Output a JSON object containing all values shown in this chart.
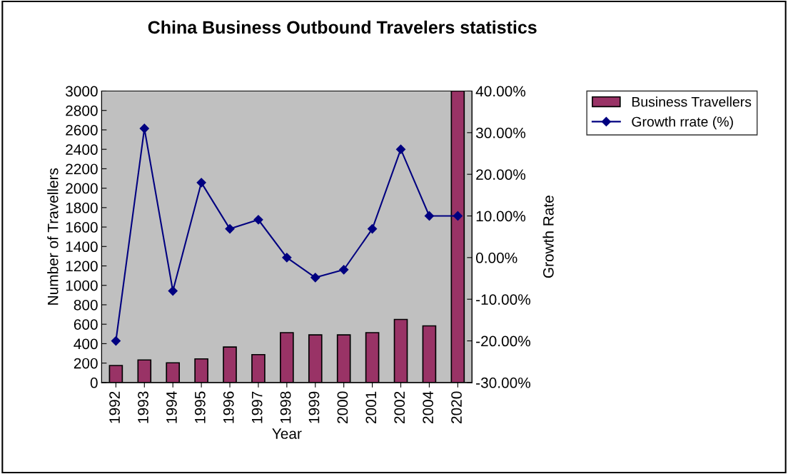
{
  "chart_data": {
    "type": "bar",
    "title": "China Business Outbound Travelers statistics",
    "xlabel": "Year",
    "ylabel": "Number of Travellers",
    "y2label": "Growth Rate",
    "categories": [
      "1992",
      "1993",
      "1994",
      "1995",
      "1996",
      "1997",
      "1998",
      "1999",
      "2000",
      "2001",
      "2002",
      "2004",
      "2020"
    ],
    "series": [
      {
        "name": "Business Travellers",
        "color": "#993366",
        "values": [
          175,
          232,
          203,
          243,
          365,
          287,
          513,
          490,
          490,
          513,
          649,
          583,
          3000
        ]
      },
      {
        "name": "Growth rrate (%)",
        "type": "line",
        "axis": "y2",
        "color": "#000080",
        "marker": "diamond",
        "values": [
          -20,
          31,
          -8,
          18,
          6.9,
          9.1,
          0,
          -4.8,
          -2.9,
          6.9,
          26,
          10,
          10
        ]
      }
    ],
    "ylim": [
      0,
      3000
    ],
    "yticks": [
      0,
      200,
      400,
      600,
      800,
      1000,
      1200,
      1400,
      1600,
      1800,
      2000,
      2200,
      2400,
      2600,
      2800,
      3000
    ],
    "y2lim": [
      -30,
      40
    ],
    "y2ticks": [
      {
        "value": -30,
        "label": "-30.00%"
      },
      {
        "value": -20,
        "label": "-20.00%"
      },
      {
        "value": -10,
        "label": "-10.00%"
      },
      {
        "value": 0,
        "label": "0.00%"
      },
      {
        "value": 10,
        "label": "10.00%"
      },
      {
        "value": 20,
        "label": "20.00%"
      },
      {
        "value": 30,
        "label": "30.00%"
      },
      {
        "value": 40,
        "label": "40.00%"
      }
    ],
    "grid": false,
    "legend": "top right"
  }
}
